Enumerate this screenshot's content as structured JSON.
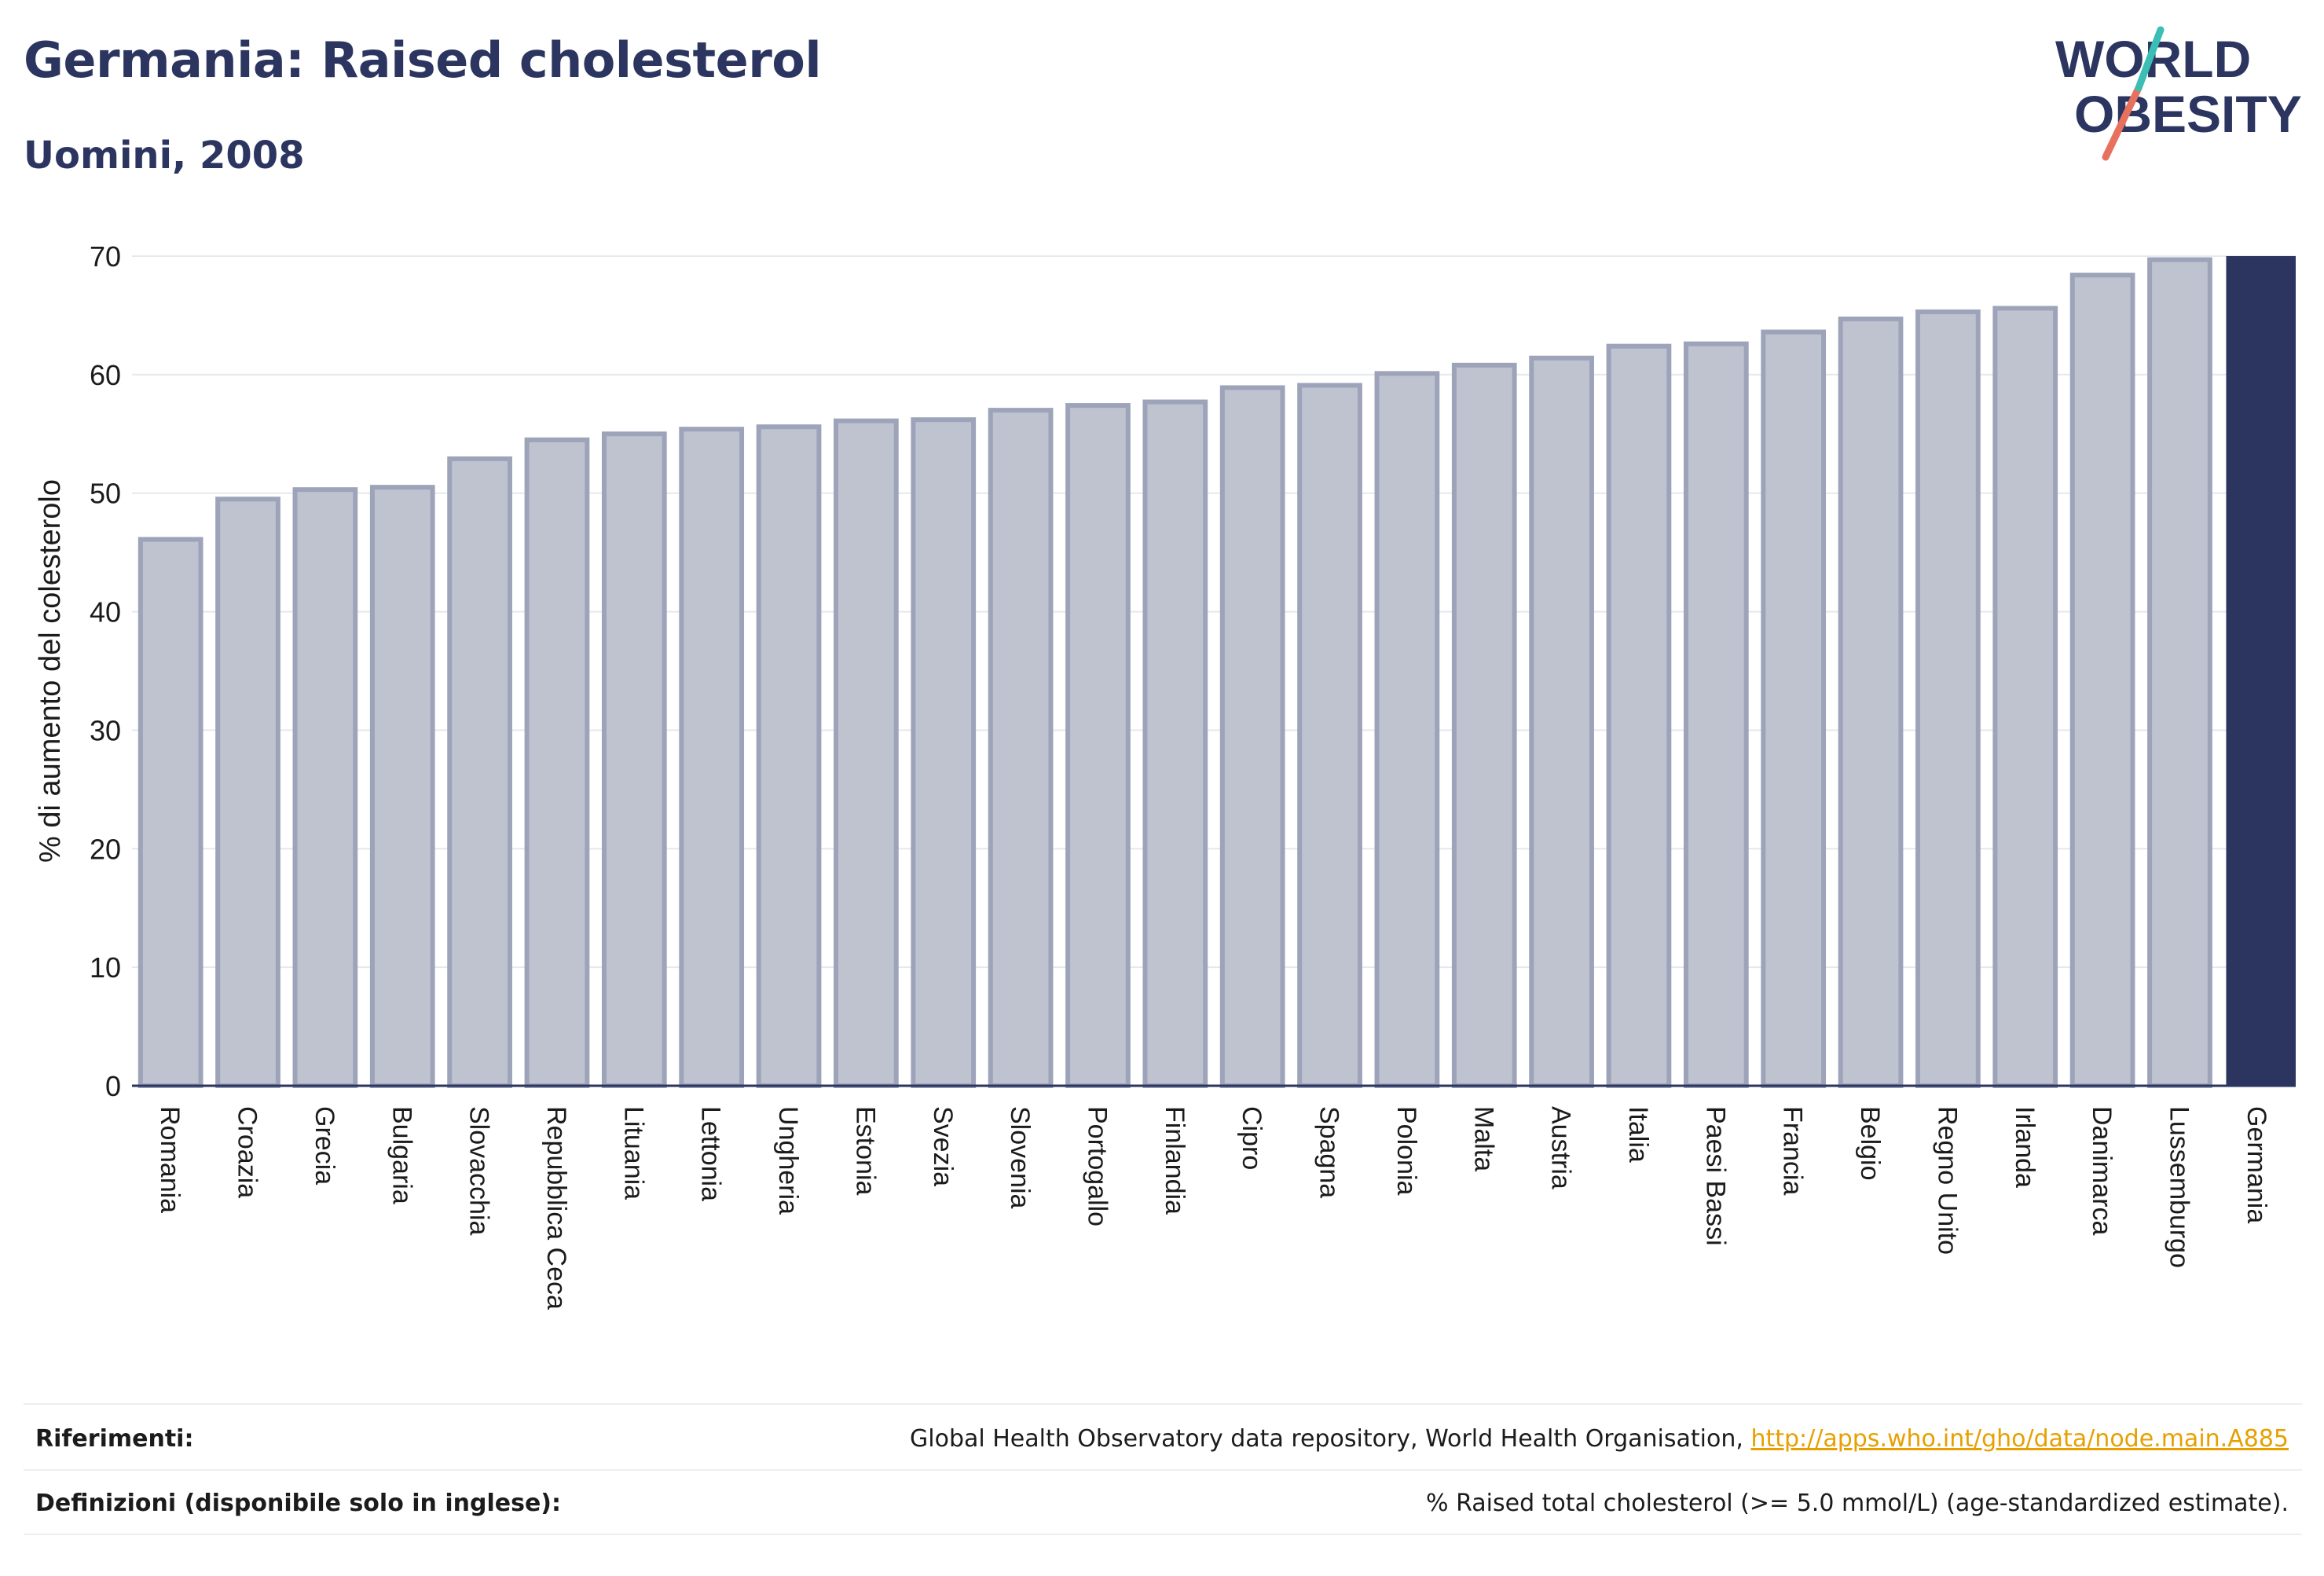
{
  "header": {
    "title": "Germania: Raised cholesterol",
    "subtitle": "Uomini, 2008",
    "logo_line1": "WORLD",
    "logo_line2": "OBESITY"
  },
  "chart_data": {
    "type": "bar",
    "ylabel": "% di aumento del colesterolo",
    "xlabel": "",
    "ylim": [
      0,
      70
    ],
    "yticks": [
      0,
      10,
      20,
      30,
      40,
      50,
      60,
      70
    ],
    "grid": true,
    "categories": [
      "Romania",
      "Croazia",
      "Grecia",
      "Bulgaria",
      "Slovacchia",
      "Repubblica Ceca",
      "Lituania",
      "Lettonia",
      "Ungheria",
      "Estonia",
      "Svezia",
      "Slovenia",
      "Portogallo",
      "Finlandia",
      "Cipro",
      "Spagna",
      "Polonia",
      "Malta",
      "Austria",
      "Italia",
      "Paesi Bassi",
      "Francia",
      "Belgio",
      "Regno Unito",
      "Irlanda",
      "Danimarca",
      "Lussemburgo",
      "Germania"
    ],
    "values": [
      46.1,
      49.5,
      50.3,
      50.5,
      52.9,
      54.5,
      55.0,
      55.4,
      55.6,
      56.1,
      56.2,
      57.0,
      57.4,
      57.7,
      58.9,
      59.1,
      60.1,
      60.8,
      61.4,
      62.4,
      62.6,
      63.6,
      64.7,
      65.3,
      65.6,
      68.4,
      69.7,
      70.0
    ],
    "highlight": "Germania",
    "colors": {
      "bar": "#bfc3d0",
      "bar_border": "#9da3b9",
      "highlight": "#2b3560",
      "grid": "#e6e8ef",
      "axis": "#2b3560"
    }
  },
  "footer": {
    "references_label": "Riferimenti:",
    "references_text": "Global Health Observatory data repository, World Health Organisation, ",
    "references_link": "http://apps.who.int/gho/data/node.main.A885",
    "definitions_label": "Definizioni (disponibile solo in inglese):",
    "definitions_text": "% Raised total cholesterol (>= 5.0 mmol/L) (age-standardized estimate)."
  }
}
